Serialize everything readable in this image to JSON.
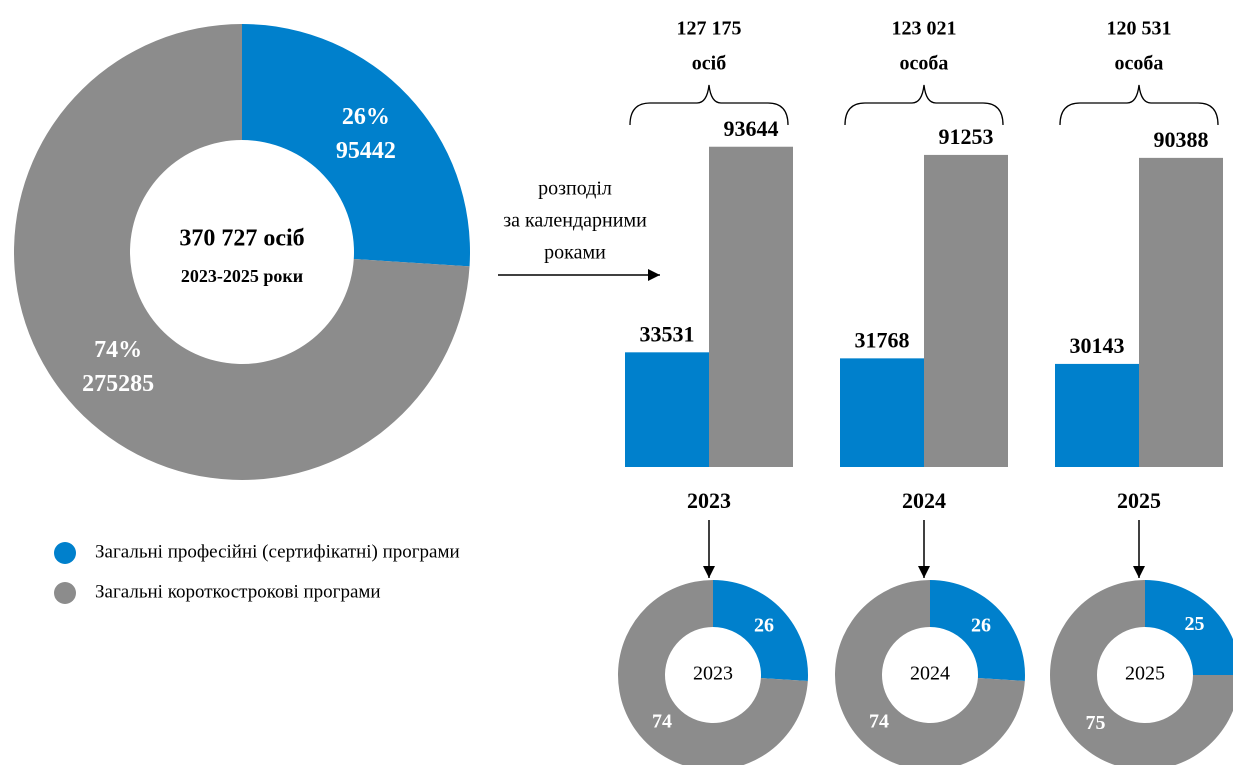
{
  "chart_data": [
    {
      "type": "pie",
      "donut": true,
      "categories": [
        "Загальні професійні (сертифікатні) програми",
        "Загальні короткострокові програми"
      ],
      "values": [
        26,
        74
      ],
      "value_labels": [
        "26%",
        "74%"
      ],
      "counts": [
        95442,
        275285
      ],
      "colors": [
        "#0080cc",
        "#8c8c8c"
      ],
      "center_label": [
        "370 727 осіб",
        "2023-2025 роки"
      ]
    },
    {
      "type": "bar",
      "categories": [
        "2023",
        "2024",
        "2025"
      ],
      "series": [
        {
          "color": "#0080cc",
          "values": [
            33531,
            31768,
            30143
          ]
        },
        {
          "color": "#8c8c8c",
          "values": [
            93644,
            91253,
            90388
          ]
        }
      ],
      "ylim": [
        0,
        100000
      ],
      "totals": [
        {
          "value": 127175,
          "label": "127 175"
        },
        {
          "value": 123021,
          "label": "123 021"
        },
        {
          "value": 120531,
          "label": "120 531"
        }
      ],
      "total_units": [
        "осіб",
        "особа",
        "особа"
      ],
      "annotation": [
        "розподіл",
        "за календарними",
        "роками"
      ]
    },
    {
      "type": "pie",
      "donut": true,
      "values": [
        26,
        74
      ],
      "colors": [
        "#0080cc",
        "#8c8c8c"
      ],
      "center_label": [
        "2023"
      ]
    },
    {
      "type": "pie",
      "donut": true,
      "values": [
        26,
        74
      ],
      "colors": [
        "#0080cc",
        "#8c8c8c"
      ],
      "center_label": [
        "2024"
      ]
    },
    {
      "type": "pie",
      "donut": true,
      "values": [
        25,
        75
      ],
      "colors": [
        "#0080cc",
        "#8c8c8c"
      ],
      "center_label": [
        "2025"
      ]
    }
  ]
}
